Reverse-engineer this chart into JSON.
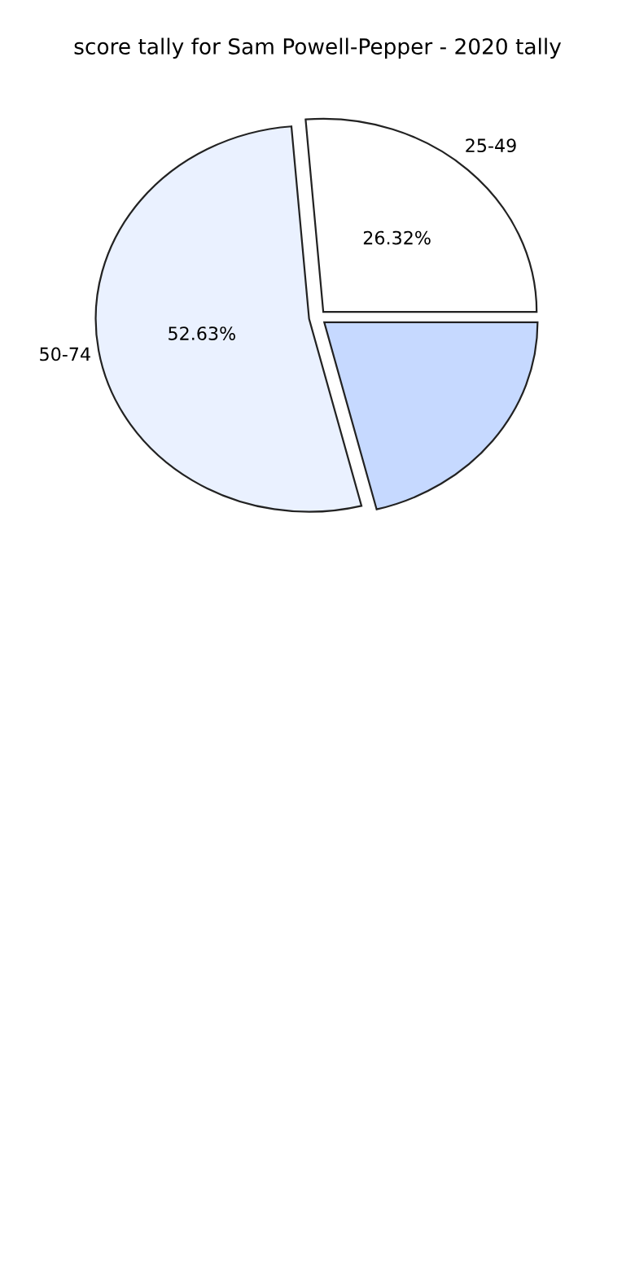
{
  "chart_data": {
    "type": "pie",
    "title": "score tally for Sam Powell-Pepper - 2020 tally",
    "categories": [
      "25-49",
      null,
      "50-74"
    ],
    "values": [
      26.32,
      21.05,
      52.63
    ],
    "colors": [
      "#ffffff",
      "#c6d9ff",
      "#eaf1ff"
    ],
    "value_labels": [
      "26.32%",
      null,
      "52.63%"
    ]
  }
}
